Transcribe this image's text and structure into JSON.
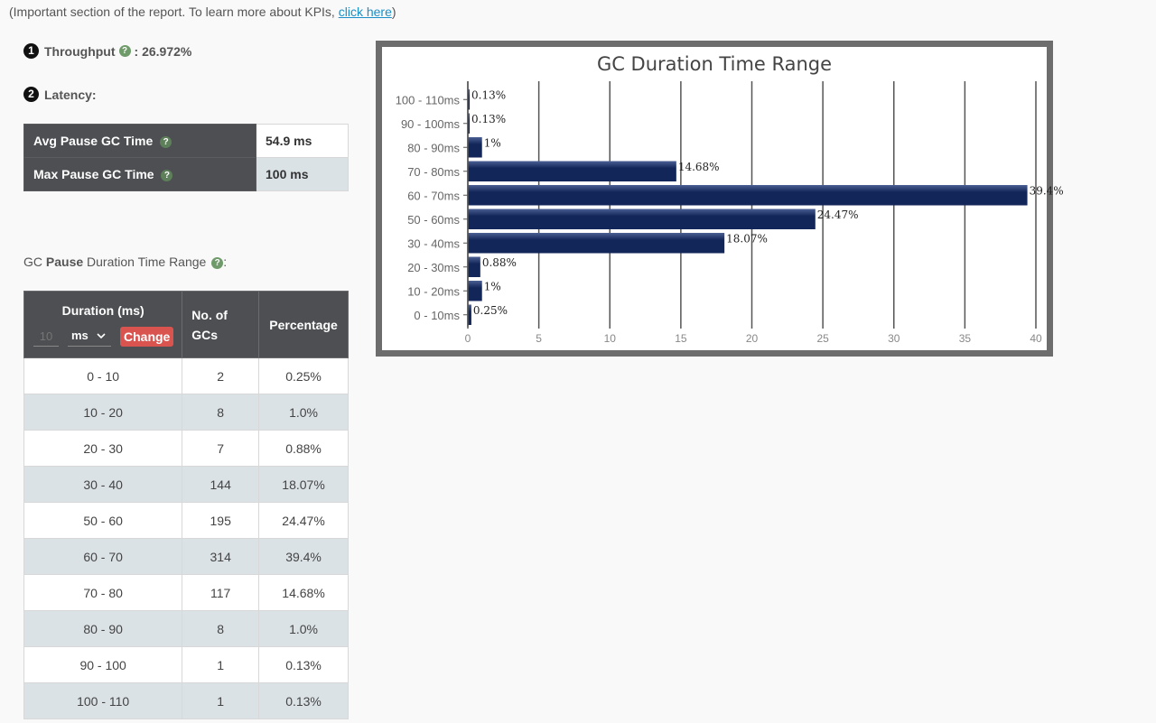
{
  "intro": {
    "text": "(Important section of the report. To learn more about KPIs, ",
    "link": "click here",
    "tail": ")"
  },
  "throughput": {
    "badge": "1",
    "label": "Throughput",
    "value": ": 26.972%"
  },
  "latency": {
    "badge": "2",
    "label": "Latency:",
    "rows": [
      {
        "label": "Avg Pause GC Time",
        "value": "54.9 ms"
      },
      {
        "label": "Max Pause GC Time",
        "value": "100 ms"
      }
    ]
  },
  "pause_section": {
    "prefix": "GC ",
    "bold": "Pause",
    "suffix": " Duration Time Range",
    "tail": ":"
  },
  "duration_table": {
    "headers": {
      "duration": "Duration (ms)",
      "gcs_line1": "No. of",
      "gcs_line2": "GCs",
      "percentage": "Percentage"
    },
    "controls": {
      "interval_placeholder": "10",
      "unit": "ms",
      "change_label": "Change"
    },
    "rows": [
      {
        "range": "0 - 10",
        "count": "2",
        "pct": "0.25%"
      },
      {
        "range": "10 - 20",
        "count": "8",
        "pct": "1.0%"
      },
      {
        "range": "20 - 30",
        "count": "7",
        "pct": "0.88%"
      },
      {
        "range": "30 - 40",
        "count": "144",
        "pct": "18.07%"
      },
      {
        "range": "50 - 60",
        "count": "195",
        "pct": "24.47%"
      },
      {
        "range": "60 - 70",
        "count": "314",
        "pct": "39.4%"
      },
      {
        "range": "70 - 80",
        "count": "117",
        "pct": "14.68%"
      },
      {
        "range": "80 - 90",
        "count": "8",
        "pct": "1.0%"
      },
      {
        "range": "90 - 100",
        "count": "1",
        "pct": "0.13%"
      },
      {
        "range": "100 - 110",
        "count": "1",
        "pct": "0.13%"
      }
    ]
  },
  "icons": {
    "help": "?",
    "select_caret": "chevron-down-icon"
  },
  "colors": {
    "bar": "#13265a",
    "bar_highlight": "#4a5f93",
    "header_bg": "#4d4f52",
    "row_alt": "#dbe2e6",
    "button": "#d9534f",
    "link": "#1a8fc7"
  },
  "chart_data": {
    "type": "bar",
    "orientation": "horizontal",
    "title": "GC Duration Time Range",
    "categories": [
      "100 - 110ms",
      "90 - 100ms",
      "80 - 90ms",
      "70 - 80ms",
      "60 - 70ms",
      "50 - 60ms",
      "30 - 40ms",
      "20 - 30ms",
      "10 - 20ms",
      "0 - 10ms"
    ],
    "values": [
      0.13,
      0.13,
      1,
      14.68,
      39.4,
      24.47,
      18.07,
      0.88,
      1,
      0.25
    ],
    "value_labels": [
      "0.13%",
      "0.13%",
      "1%",
      "14.68%",
      "39.4%",
      "24.47%",
      "18.07%",
      "0.88%",
      "1%",
      "0.25%"
    ],
    "xlim": [
      0,
      40
    ],
    "xticks": [
      0,
      5,
      10,
      15,
      20,
      25,
      30,
      35,
      40
    ],
    "grid": true,
    "xlabel": "",
    "ylabel": ""
  }
}
